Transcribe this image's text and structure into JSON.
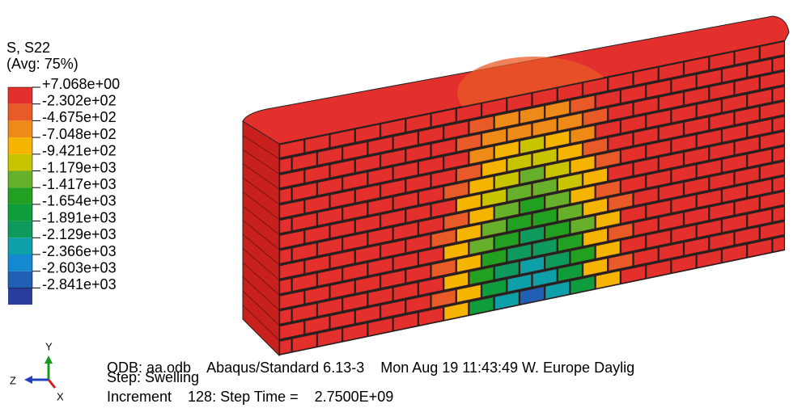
{
  "legend": {
    "title": "S, S22",
    "subtitle": "(Avg: 75%)",
    "labels": [
      "+7.068e+00",
      "-2.302e+02",
      "-4.675e+02",
      "-7.048e+02",
      "-9.421e+02",
      "-1.179e+03",
      "-1.417e+03",
      "-1.654e+03",
      "-1.891e+03",
      "-2.129e+03",
      "-2.366e+03",
      "-2.603e+03",
      "-2.841e+03"
    ],
    "colors": [
      "#e3302c",
      "#e85a28",
      "#ee8a18",
      "#f5b400",
      "#c8c400",
      "#66b02c",
      "#22a022",
      "#0e9c3c",
      "#0e9a5c",
      "#0ea0a8",
      "#1488d0",
      "#2060b4",
      "#2a3c9c"
    ]
  },
  "triad": {
    "y": "Y",
    "z": "Z",
    "x": "X"
  },
  "footer": {
    "line1": "ODB: aa.odb    Abaqus/Standard 6.13-3    Mon Aug 19 11:43:49 W. Europe Daylig",
    "line2": "Step: Swelling",
    "line3": "Increment    128: Step Time =    2.7500E+09"
  }
}
